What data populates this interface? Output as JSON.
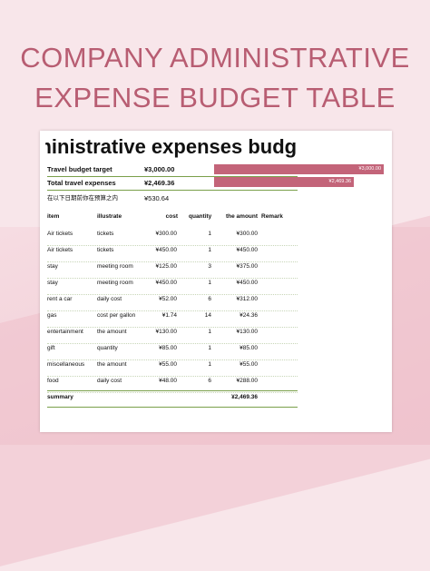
{
  "page": {
    "title_line1": "COMPANY ADMINISTRATIVE",
    "title_line2": "EXPENSE BUDGET TABLE"
  },
  "colors": {
    "accent": "#b85d72",
    "bar": "#c36479",
    "rule": "#7aa04a",
    "background": "#f8e6ea"
  },
  "sheet": {
    "title": "Administrative expenses budg",
    "travel_budget_label": "Travel budget target",
    "travel_budget_value": "¥3,000.00",
    "total_travel_label": "Total travel expenses",
    "total_travel_value": "¥2,469.36",
    "remaining_label": "在以下日期前你在预算之内",
    "remaining_value": "¥530.64",
    "bars": [
      {
        "label": "¥3,000.00",
        "value": 3000.0
      },
      {
        "label": "¥2,469.36",
        "value": 2469.36
      }
    ],
    "table": {
      "headers": [
        "item",
        "illustrate",
        "cost",
        "quantity",
        "the amount",
        "Remark"
      ],
      "rows": [
        [
          "Air tickets",
          "tickets",
          "¥300.00",
          "1",
          "¥300.00",
          ""
        ],
        [
          "Air tickets",
          "tickets",
          "¥450.00",
          "1",
          "¥450.00",
          ""
        ],
        [
          "stay",
          "meeting room",
          "¥125.00",
          "3",
          "¥375.00",
          ""
        ],
        [
          "stay",
          "meeting room",
          "¥450.00",
          "1",
          "¥450.00",
          ""
        ],
        [
          "rent a car",
          "daily cost",
          "¥52.00",
          "6",
          "¥312.00",
          ""
        ],
        [
          "gas",
          "cost per gallon",
          "¥1.74",
          "14",
          "¥24.36",
          ""
        ],
        [
          "entertainment",
          "the amount",
          "¥130.00",
          "1",
          "¥130.00",
          ""
        ],
        [
          "gift",
          "quantity",
          "¥85.00",
          "1",
          "¥85.00",
          ""
        ],
        [
          "miscellaneous",
          "the amount",
          "¥55.00",
          "1",
          "¥55.00",
          ""
        ],
        [
          "food",
          "daily cost",
          "¥48.00",
          "6",
          "¥288.00",
          ""
        ]
      ],
      "summary_label": "summary",
      "summary_value": "¥2,469.36"
    }
  }
}
